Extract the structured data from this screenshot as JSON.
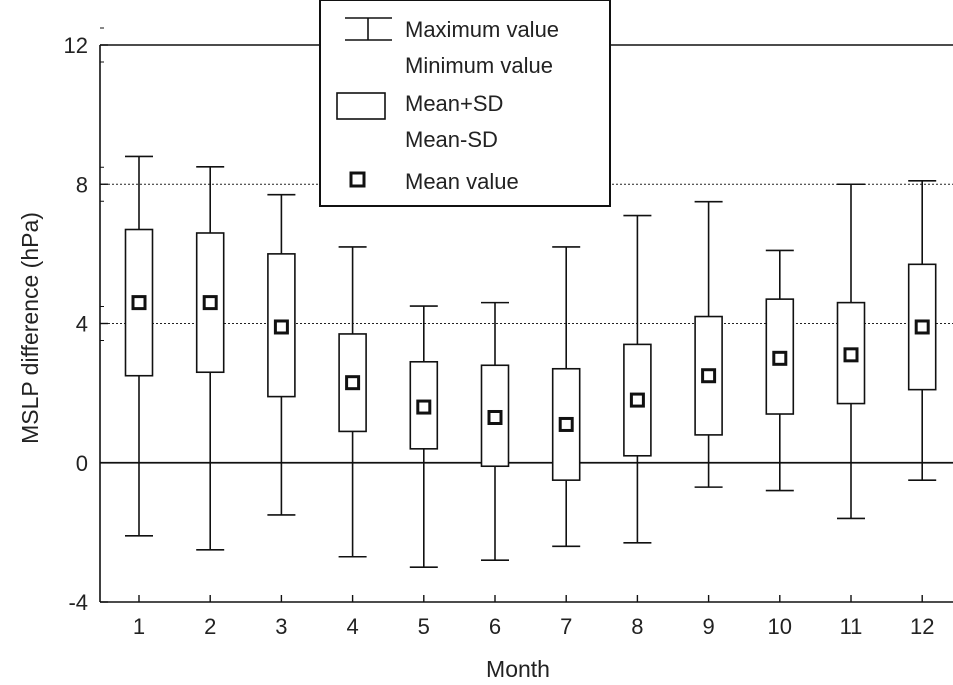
{
  "chart_data": {
    "type": "box",
    "xlabel": "Month",
    "ylabel": "MSLP difference (hPa)",
    "categories": [
      "1",
      "2",
      "3",
      "4",
      "5",
      "6",
      "7",
      "8",
      "9",
      "10",
      "11",
      "12"
    ],
    "y_ticks": [
      "-4",
      "0",
      "4",
      "8",
      "12"
    ],
    "ylim": [
      -4,
      12
    ],
    "gridlines": [
      4,
      8
    ],
    "legend_position": "top-center",
    "legend": {
      "whisker_max": "Maximum value",
      "whisker_min": "Minimum value",
      "box_upper": "Mean+SD",
      "box_lower": "Mean-SD",
      "mean": "Mean value"
    },
    "series": [
      {
        "month": "1",
        "max": 8.8,
        "mean_plus_sd": 6.7,
        "mean": 4.6,
        "mean_minus_sd": 2.5,
        "min": -2.1
      },
      {
        "month": "2",
        "max": 8.5,
        "mean_plus_sd": 6.6,
        "mean": 4.6,
        "mean_minus_sd": 2.6,
        "min": -2.5
      },
      {
        "month": "3",
        "max": 7.7,
        "mean_plus_sd": 6.0,
        "mean": 3.9,
        "mean_minus_sd": 1.9,
        "min": -1.5
      },
      {
        "month": "4",
        "max": 6.2,
        "mean_plus_sd": 3.7,
        "mean": 2.3,
        "mean_minus_sd": 0.9,
        "min": -2.7
      },
      {
        "month": "5",
        "max": 4.5,
        "mean_plus_sd": 2.9,
        "mean": 1.6,
        "mean_minus_sd": 0.4,
        "min": -3.0
      },
      {
        "month": "6",
        "max": 4.6,
        "mean_plus_sd": 2.8,
        "mean": 1.3,
        "mean_minus_sd": -0.1,
        "min": -2.8
      },
      {
        "month": "7",
        "max": 6.2,
        "mean_plus_sd": 2.7,
        "mean": 1.1,
        "mean_minus_sd": -0.5,
        "min": -2.4
      },
      {
        "month": "8",
        "max": 7.1,
        "mean_plus_sd": 3.4,
        "mean": 1.8,
        "mean_minus_sd": 0.2,
        "min": -2.3
      },
      {
        "month": "9",
        "max": 7.5,
        "mean_plus_sd": 4.2,
        "mean": 2.5,
        "mean_minus_sd": 0.8,
        "min": -0.7
      },
      {
        "month": "10",
        "max": 6.1,
        "mean_plus_sd": 4.7,
        "mean": 3.0,
        "mean_minus_sd": 1.4,
        "min": -0.8
      },
      {
        "month": "11",
        "max": 8.0,
        "mean_plus_sd": 4.6,
        "mean": 3.1,
        "mean_minus_sd": 1.7,
        "min": -1.6
      },
      {
        "month": "12",
        "max": 8.1,
        "mean_plus_sd": 5.7,
        "mean": 3.9,
        "mean_minus_sd": 2.1,
        "min": -0.5
      }
    ]
  }
}
